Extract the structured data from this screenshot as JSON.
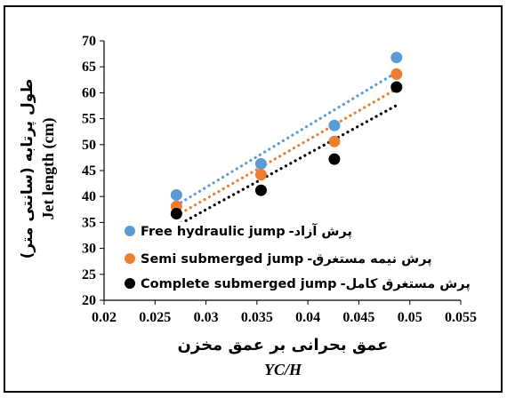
{
  "chart_data": {
    "type": "scatter",
    "xlabel": "عمق بحرانی بر عمق مخزن",
    "xlabel_sub": "YC/H",
    "ylabel": "طول پرتابه (سانتی متر)",
    "ylabel_sub": "Jet length (cm)",
    "xlim": [
      0.02,
      0.055
    ],
    "ylim": [
      20,
      70
    ],
    "x_ticks": [
      "0.02",
      "0.025",
      "0.03",
      "0.035",
      "0.04",
      "0.045",
      "0.05",
      "0.055"
    ],
    "y_ticks": [
      "20",
      "25",
      "30",
      "35",
      "40",
      "45",
      "50",
      "55",
      "60",
      "65",
      "70"
    ],
    "grid": false,
    "legend_position": "bottom-left",
    "trendline": "linear dotted",
    "series": [
      {
        "name": "Free hydraulic jump",
        "name_fa": "پرش آزاد-",
        "color": "#5B9BD5",
        "x": [
          0.0271,
          0.0354,
          0.0426,
          0.0487
        ],
        "y": [
          40.3,
          46.3,
          53.7,
          66.8
        ]
      },
      {
        "name": "Semi submerged jump",
        "name_fa": "پرش نیمه مستغرق-",
        "color": "#ED7D31",
        "x": [
          0.0271,
          0.0354,
          0.0426,
          0.0487
        ],
        "y": [
          38.1,
          44.2,
          50.6,
          63.6
        ]
      },
      {
        "name": "Complete submerged jump",
        "name_fa": "پرش مستغرق کامل-",
        "color": "#000000",
        "x": [
          0.0271,
          0.0354,
          0.0426,
          0.0487
        ],
        "y": [
          36.7,
          41.2,
          47.2,
          61.1
        ]
      }
    ]
  }
}
